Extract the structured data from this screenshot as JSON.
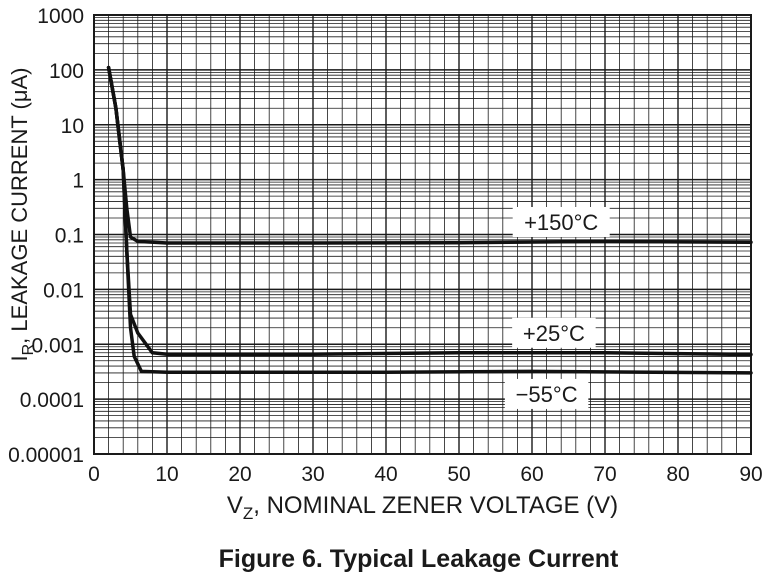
{
  "chart_data": {
    "type": "line",
    "title": "Figure 6. Typical Leakage Current",
    "xlabel": {
      "prefix": "V",
      "subscript": "Z",
      "suffix": ", NOMINAL ZENER VOLTAGE (V)"
    },
    "ylabel": {
      "prefix": "I",
      "subscript": "R",
      "suffix": ", LEAKAGE CURRENT (μA)"
    },
    "xlim": [
      0,
      90
    ],
    "ylim": [
      1e-05,
      1000
    ],
    "yscale": "log",
    "grid": true,
    "x_ticks": [
      "0",
      "10",
      "20",
      "30",
      "40",
      "50",
      "60",
      "70",
      "80",
      "90"
    ],
    "y_ticks": [
      "0.00001",
      "0.0001",
      "0.001",
      "0.01",
      "0.1",
      "1",
      "10",
      "100",
      "1000"
    ],
    "series": [
      {
        "name": "+150°C",
        "points": [
          [
            2,
            110
          ],
          [
            3,
            20
          ],
          [
            4,
            1.5
          ],
          [
            4.5,
            0.3
          ],
          [
            5,
            0.09
          ],
          [
            6,
            0.075
          ],
          [
            10,
            0.07
          ],
          [
            30,
            0.07
          ],
          [
            50,
            0.071
          ],
          [
            70,
            0.075
          ],
          [
            90,
            0.072
          ]
        ]
      },
      {
        "name": "+25°C",
        "points": [
          [
            2,
            110
          ],
          [
            3,
            20
          ],
          [
            4,
            1.5
          ],
          [
            4.5,
            0.05
          ],
          [
            5,
            0.0035
          ],
          [
            6,
            0.0016
          ],
          [
            8,
            0.0007
          ],
          [
            10,
            0.00066
          ],
          [
            30,
            0.00066
          ],
          [
            50,
            0.0007
          ],
          [
            70,
            0.0007
          ],
          [
            90,
            0.00065
          ]
        ]
      },
      {
        "name": "−55°C",
        "points": [
          [
            2,
            110
          ],
          [
            3,
            20
          ],
          [
            4,
            1.5
          ],
          [
            4.5,
            0.05
          ],
          [
            5,
            0.002
          ],
          [
            5.5,
            0.0006
          ],
          [
            6.5,
            0.00032
          ],
          [
            10,
            0.00031
          ],
          [
            40,
            0.00031
          ],
          [
            60,
            0.00032
          ],
          [
            90,
            0.0003
          ]
        ]
      }
    ]
  }
}
